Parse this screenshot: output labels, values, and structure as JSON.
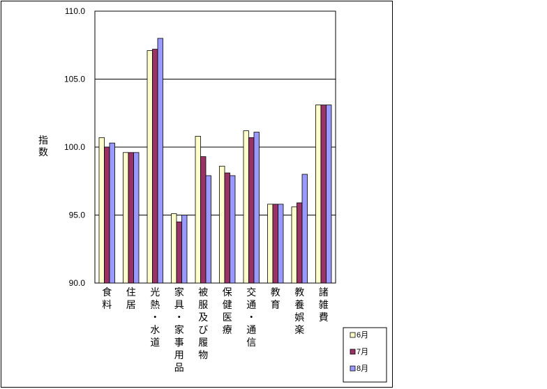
{
  "chart_data": {
    "type": "bar",
    "ylabel": "指数",
    "ylim": [
      90,
      110
    ],
    "yticks": [
      "90.0",
      "95.0",
      "100.0",
      "105.0",
      "110.0"
    ],
    "grid": true,
    "legend_position": "bottom-right",
    "categories": [
      "食料",
      "住居",
      "光熱・水道",
      "家具・家事用品",
      "被服及び履物",
      "保健医療",
      "交通・通信",
      "教育",
      "教養娯楽",
      "諸雑費"
    ],
    "series": [
      {
        "name": "6月",
        "color": "#ffffcc",
        "values": [
          100.7,
          99.6,
          107.1,
          95.1,
          100.8,
          98.6,
          101.2,
          95.8,
          95.6,
          103.1
        ]
      },
      {
        "name": "7月",
        "color": "#993366",
        "values": [
          100.0,
          99.6,
          107.2,
          94.5,
          99.3,
          98.1,
          100.7,
          95.8,
          95.9,
          103.1
        ]
      },
      {
        "name": "8月",
        "color": "#9999ff",
        "values": [
          100.3,
          99.6,
          108.0,
          95.0,
          97.9,
          97.9,
          101.1,
          95.8,
          98.0,
          103.1
        ]
      }
    ]
  }
}
